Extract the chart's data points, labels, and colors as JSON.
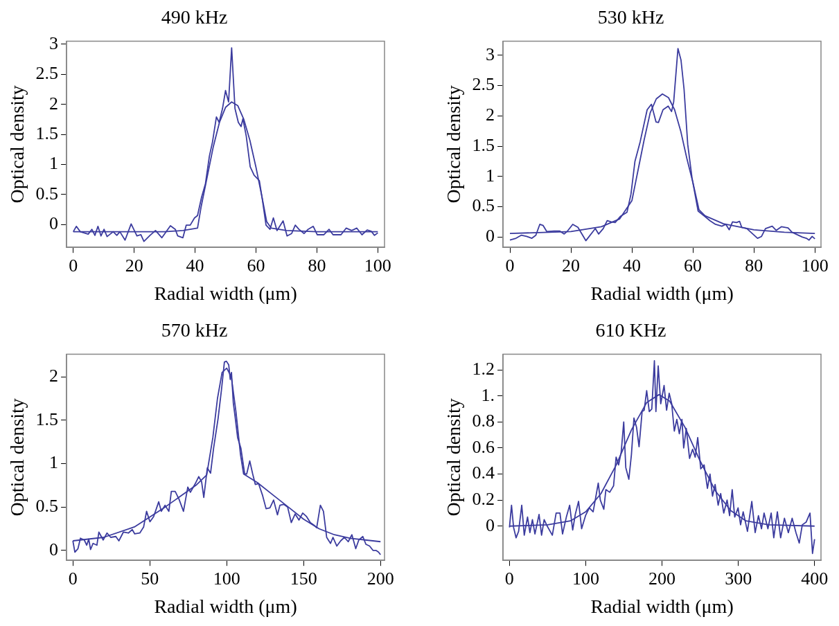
{
  "chart_data": [
    {
      "type": "line",
      "title": "490 kHz",
      "xlabel": "Radial width (μm)",
      "ylabel": "Optical density",
      "marker": "none",
      "xlim": [
        -2.2,
        102.2
      ],
      "xticks": [
        0,
        20,
        40,
        60,
        80,
        100
      ],
      "ylim": [
        -0.38,
        3.05
      ],
      "yticks": [
        0,
        0.5,
        1,
        1.5,
        2,
        2.5,
        3
      ],
      "series": [
        {
          "color": "#3b3b9e",
          "x": [
            0,
            1.0,
            2.3,
            4.9,
            6.1,
            7.1,
            8.1,
            9.1,
            10.1,
            11.1,
            13.1,
            14.3,
            15.3,
            17.0,
            19.0,
            20.9,
            22.2,
            23.2,
            25.2,
            27.0,
            29.1,
            31.9,
            33.5,
            34.3,
            36.0,
            37.1,
            38.4,
            39.8,
            40.8,
            42.1,
            43.4,
            44.7,
            45.7,
            47.0,
            47.9,
            49.0,
            50.0,
            51.0,
            52.0,
            53.1,
            54.2,
            55.1,
            55.7,
            56.8,
            58.1,
            59.4,
            61.1,
            62.1,
            63.3,
            64.6,
            65.7,
            66.9,
            68.9,
            70.2,
            71.7,
            72.9,
            74.1,
            75.8,
            77.1,
            78.8,
            80.1,
            82.3,
            84.0,
            85.3,
            87.9,
            89.6,
            91.4,
            93.1,
            94.8,
            96.5,
            97.8,
            98.9,
            100
          ],
          "values": [
            -0.12,
            -0.03,
            -0.12,
            -0.16,
            -0.08,
            -0.18,
            -0.03,
            -0.19,
            -0.08,
            -0.2,
            -0.12,
            -0.18,
            -0.12,
            -0.26,
            0.01,
            -0.19,
            -0.17,
            -0.28,
            -0.18,
            -0.1,
            -0.22,
            -0.02,
            -0.08,
            -0.19,
            -0.22,
            -0.01,
            -0.01,
            0.11,
            0.15,
            0.45,
            0.68,
            1.14,
            1.37,
            1.79,
            1.7,
            1.93,
            2.23,
            2.04,
            2.94,
            1.93,
            1.7,
            1.63,
            1.76,
            1.47,
            0.96,
            0.82,
            0.73,
            0.41,
            -0.01,
            -0.08,
            0.11,
            -0.1,
            0.06,
            -0.19,
            -0.15,
            -0.01,
            -0.08,
            -0.15,
            -0.08,
            -0.03,
            -0.17,
            -0.17,
            -0.08,
            -0.17,
            -0.17,
            -0.06,
            -0.1,
            -0.06,
            -0.17,
            -0.09,
            -0.11,
            -0.18,
            -0.14
          ]
        },
        {
          "color": "#3b3b9e",
          "x": [
            0,
            30,
            36,
            40.8,
            42,
            44,
            46,
            48,
            50,
            52,
            54,
            56,
            58,
            60,
            62,
            63.5,
            65,
            70,
            80,
            100
          ],
          "values": [
            -0.12,
            -0.12,
            -0.1,
            -0.06,
            0.3,
            0.8,
            1.3,
            1.7,
            1.95,
            2.04,
            1.98,
            1.75,
            1.4,
            0.95,
            0.45,
            0.05,
            -0.06,
            -0.1,
            -0.12,
            -0.12
          ]
        }
      ]
    },
    {
      "type": "line",
      "title": "530 kHz",
      "xlabel": "Radial width (μm)",
      "ylabel": "Optical density",
      "marker": "none",
      "xlim": [
        -2.25,
        102
      ],
      "xticks": [
        0,
        20,
        40,
        60,
        80,
        100
      ],
      "ylim": [
        -0.17,
        3.23
      ],
      "yticks": [
        0,
        0.5,
        1,
        1.5,
        2,
        2.5,
        3
      ],
      "series": [
        {
          "color": "#3b3b9e",
          "x": [
            0,
            2.0,
            3.7,
            5.5,
            7.2,
            8.5,
            9.8,
            10.9,
            12.1,
            14.5,
            16.3,
            17.8,
            18.9,
            20.6,
            22.3,
            24.9,
            28.0,
            29.1,
            30.6,
            31.9,
            33.2,
            34.5,
            36.2,
            38.4,
            39.7,
            41.0,
            42.7,
            45.0,
            46.4,
            47.9,
            48.7,
            50.2,
            51.9,
            53.0,
            53.7,
            55.1,
            56.1,
            57.1,
            58.3,
            59.7,
            61.7,
            63.9,
            65.6,
            67.4,
            69.5,
            70.8,
            71.9,
            73.0,
            74.3,
            75.3,
            76.0,
            77.7,
            81.2,
            82.5,
            83.8,
            86.0,
            87.3,
            89.0,
            91.2,
            92.5,
            95.9,
            97.2,
            98.1,
            99.1,
            100
          ],
          "values": [
            -0.05,
            -0.02,
            0.03,
            0.01,
            -0.02,
            0.03,
            0.21,
            0.19,
            0.09,
            0.1,
            0.1,
            0.05,
            0.1,
            0.21,
            0.16,
            -0.06,
            0.14,
            0.05,
            0.14,
            0.27,
            0.25,
            0.24,
            0.34,
            0.41,
            0.71,
            1.25,
            1.57,
            2.1,
            2.19,
            1.9,
            1.89,
            2.1,
            2.16,
            2.07,
            2.23,
            3.11,
            2.92,
            2.44,
            1.53,
            0.98,
            0.43,
            0.34,
            0.27,
            0.21,
            0.18,
            0.21,
            0.12,
            0.25,
            0.24,
            0.26,
            0.16,
            0.14,
            -0.02,
            0.01,
            0.14,
            0.18,
            0.11,
            0.17,
            0.15,
            0.08,
            0,
            -0.02,
            -0.05,
            0.01,
            -0.03
          ]
        },
        {
          "color": "#3b3b9e",
          "x": [
            0,
            20,
            30,
            36,
            40,
            42,
            44,
            46,
            48,
            50,
            52,
            54,
            56,
            58,
            60,
            62,
            64,
            70,
            80,
            90,
            100
          ],
          "values": [
            0.06,
            0.09,
            0.17,
            0.3,
            0.6,
            1.1,
            1.6,
            2.05,
            2.28,
            2.36,
            2.3,
            2.1,
            1.75,
            1.3,
            0.9,
            0.45,
            0.35,
            0.22,
            0.12,
            0.08,
            0.06
          ]
        }
      ]
    },
    {
      "type": "line",
      "title": "570 kHz",
      "xlabel": "Radial width (μm)",
      "ylabel": "Optical density",
      "marker": "none",
      "xlim": [
        -4.1,
        202.6
      ],
      "xticks": [
        0,
        50,
        100,
        150,
        200
      ],
      "ylim": [
        -0.115,
        2.26
      ],
      "yticks": [
        0,
        0.5,
        1,
        1.5,
        2
      ],
      "series": [
        {
          "color": "#3b3b9e",
          "x": [
            0,
            1.3,
            3.3,
            4.9,
            7.4,
            9.0,
            10.3,
            11.5,
            13.1,
            15.6,
            16.9,
            19.7,
            22.2,
            24.6,
            27.9,
            29.9,
            32.8,
            36.1,
            38.6,
            40.2,
            43.5,
            46.0,
            47.9,
            50.1,
            52.5,
            55.8,
            57.5,
            59.9,
            62.4,
            64.0,
            66.5,
            69.0,
            71.9,
            74.7,
            76.4,
            79.6,
            81.8,
            83.7,
            85.1,
            87.4,
            89.5,
            91.5,
            93.3,
            94.4,
            96.6,
            98.5,
            99.8,
            101.3,
            102.3,
            103.1,
            104.3,
            105.4,
            107.1,
            109.2,
            111.7,
            113.0,
            115.0,
            116.9,
            118.6,
            120.7,
            123.2,
            125.6,
            128.1,
            130.5,
            133.0,
            134.6,
            137.1,
            139.6,
            142.0,
            144.5,
            147.0,
            149.4,
            151.9,
            154.4,
            156.8,
            158.5,
            160.9,
            162.9,
            165.0,
            167.5,
            169.1,
            171.6,
            174.1,
            176.5,
            179.0,
            181.4,
            183.9,
            185.9,
            188.5,
            190.5,
            192.9,
            195.1,
            197.0,
            198.7,
            200
          ],
          "values": [
            0.11,
            -0.02,
            0.02,
            0.14,
            0.12,
            0.06,
            0.13,
            0.01,
            0.08,
            0.06,
            0.21,
            0.12,
            0.2,
            0.15,
            0.16,
            0.11,
            0.21,
            0.2,
            0.24,
            0.19,
            0.2,
            0.27,
            0.45,
            0.33,
            0.39,
            0.56,
            0.45,
            0.52,
            0.45,
            0.68,
            0.68,
            0.59,
            0.45,
            0.73,
            0.67,
            0.77,
            0.85,
            0.79,
            0.61,
            0.95,
            0.89,
            1.18,
            1.39,
            1.52,
            1.85,
            2.17,
            2.18,
            2.14,
            1.97,
            2.05,
            1.7,
            1.55,
            1.3,
            1.18,
            0.88,
            0.88,
            1.03,
            0.88,
            0.76,
            0.77,
            0.64,
            0.48,
            0.49,
            0.58,
            0.41,
            0.52,
            0.53,
            0.5,
            0.32,
            0.42,
            0.35,
            0.43,
            0.39,
            0.32,
            0.29,
            0.26,
            0.52,
            0.45,
            0.15,
            0.08,
            0.15,
            0.05,
            0.11,
            0.15,
            0.1,
            0.18,
            0.02,
            0.12,
            0.16,
            0.07,
            0.05,
            0,
            0,
            -0.02,
            -0.05
          ]
        },
        {
          "color": "#3b3b9e",
          "x": [
            0,
            20,
            40,
            60,
            80,
            87,
            91,
            94,
            97,
            100,
            103,
            106,
            109,
            111,
            120,
            130,
            140,
            150,
            160,
            170,
            180,
            190,
            200
          ],
          "values": [
            0.11,
            0.15,
            0.27,
            0.5,
            0.75,
            0.87,
            1.3,
            1.75,
            2.05,
            2.1,
            2.0,
            1.6,
            1.1,
            0.88,
            0.78,
            0.64,
            0.5,
            0.36,
            0.25,
            0.18,
            0.14,
            0.12,
            0.1
          ]
        }
      ]
    },
    {
      "type": "line",
      "title": "610 KHz",
      "xlabel": "Radial width (μm)",
      "ylabel": "Optical density",
      "marker": "none",
      "xlim": [
        -8.4,
        408.4
      ],
      "xticks": [
        0,
        100,
        200,
        300,
        400
      ],
      "ylim": [
        -0.263,
        1.32
      ],
      "yticks": [
        0,
        0.2,
        0.4,
        0.6,
        0.8,
        {
          "value": 1,
          "label": "1."
        },
        1.2
      ],
      "series": [
        {
          "color": "#3b3b9e",
          "x": [
            0,
            2.7,
            5.4,
            8.7,
            12.0,
            16.1,
            19.4,
            23.7,
            26.8,
            30.1,
            33.4,
            38.8,
            42.1,
            45.5,
            49.5,
            56.2,
            61.2,
            66.2,
            69.6,
            74.6,
            78.9,
            82.9,
            86.3,
            90.6,
            94.6,
            99.7,
            104.7,
            109.7,
            116.4,
            119.1,
            123.7,
            126.4,
            131.4,
            136.5,
            139.8,
            143.1,
            146.5,
            149.8,
            152.5,
            156.5,
            159.9,
            163.2,
            166.6,
            169.9,
            173.9,
            176.6,
            179.9,
            183.3,
            186.6,
            190.0,
            192.0,
            195.0,
            198.3,
            202.7,
            206.0,
            209.4,
            212.7,
            216.1,
            219.4,
            222.7,
            226.1,
            228.4,
            231.8,
            236.1,
            240.1,
            243.5,
            246.8,
            250.8,
            255.2,
            259.5,
            262.9,
            266.2,
            269.6,
            273.6,
            276.9,
            280.9,
            285.3,
            288.6,
            292.0,
            295.3,
            299.7,
            303.0,
            306.4,
            312.0,
            317.7,
            322.1,
            326.4,
            330.4,
            333.8,
            338.8,
            343.1,
            346.5,
            351.2,
            355.5,
            360.5,
            365.6,
            370.6,
            375.6,
            379.9,
            383.9,
            388.9,
            394.0,
            397.3,
            400
          ],
          "values": [
            -0.01,
            0.16,
            -0.01,
            -0.09,
            -0.04,
            0.16,
            -0.07,
            0.07,
            -0.05,
            0.05,
            -0.06,
            0.09,
            -0.07,
            0.05,
            0,
            -0.07,
            0.1,
            0.1,
            -0.06,
            0.07,
            0.16,
            -0.03,
            0.09,
            0.19,
            -0.02,
            0.08,
            0.14,
            0.11,
            0.33,
            0.2,
            0.13,
            0.28,
            0.26,
            0.31,
            0.53,
            0.47,
            0.57,
            0.8,
            0.45,
            0.36,
            0.55,
            0.83,
            0.76,
            0.61,
            0.88,
            0.89,
            1.04,
            0.88,
            0.9,
            1.27,
            0.88,
            1.23,
            0.94,
            1.08,
            0.89,
            1.02,
            0.94,
            0.73,
            0.82,
            0.71,
            0.82,
            0.6,
            0.75,
            0.52,
            0.59,
            0.53,
            0.68,
            0.44,
            0.47,
            0.29,
            0.4,
            0.23,
            0.32,
            0.16,
            0.25,
            0.1,
            0.2,
            0.08,
            0.28,
            0.07,
            0.14,
            0.01,
            0.11,
            -0.04,
            0.19,
            -0.05,
            0.08,
            -0.02,
            0.1,
            -0.02,
            0.1,
            -0.09,
            0.11,
            -0.09,
            0.06,
            -0.05,
            0.06,
            -0.05,
            -0.13,
            0.01,
            0.03,
            0.1,
            -0.21,
            -0.1
          ]
        },
        {
          "color": "#3b3b9e",
          "x": [
            0,
            50,
            80,
            100,
            120,
            140,
            160,
            180,
            196,
            210,
            230,
            250,
            270,
            290,
            310,
            340,
            400
          ],
          "values": [
            0,
            0.01,
            0.04,
            0.11,
            0.25,
            0.47,
            0.74,
            0.95,
            1.01,
            0.96,
            0.76,
            0.5,
            0.27,
            0.12,
            0.04,
            0.01,
            0
          ]
        }
      ]
    }
  ]
}
